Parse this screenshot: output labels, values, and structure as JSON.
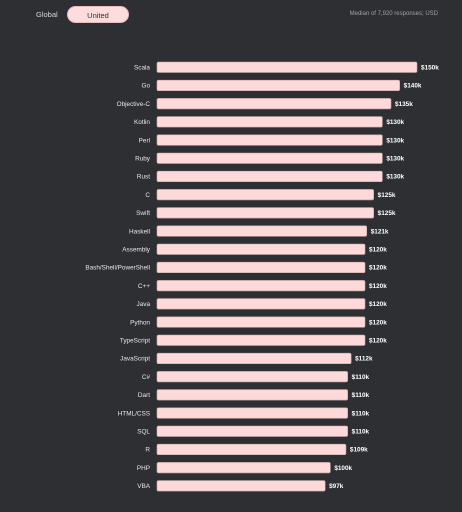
{
  "tabs": {
    "global": "Global",
    "united_states": "United States"
  },
  "subtitle": "Median of 7,920 responses; USD",
  "colors": {
    "background": "#2d2f33",
    "bar_fill": "#fdd9d9",
    "bar_stroke": "#c9a9a9",
    "active_tab": "#fcdcdc"
  },
  "chart_data": {
    "type": "bar",
    "orientation": "horizontal",
    "title": "",
    "xlabel": "",
    "ylabel": "",
    "xlim": [
      0,
      150000
    ],
    "grid": false,
    "categories": [
      "Scala",
      "Go",
      "Objective-C",
      "Kotlin",
      "Perl",
      "Ruby",
      "Rust",
      "C",
      "Swift",
      "Haskell",
      "Assembly",
      "Bash/Shell/PowerShell",
      "C++",
      "Java",
      "Python",
      "TypeScript",
      "JavaScript",
      "C#",
      "Dart",
      "HTML/CSS",
      "SQL",
      "R",
      "PHP",
      "VBA"
    ],
    "values": [
      150000,
      140000,
      135000,
      130000,
      130000,
      130000,
      130000,
      125000,
      125000,
      121000,
      120000,
      120000,
      120000,
      120000,
      120000,
      120000,
      112000,
      110000,
      110000,
      110000,
      110000,
      109000,
      100000,
      97000
    ],
    "value_labels": [
      "$150k",
      "$140k",
      "$135k",
      "$130k",
      "$130k",
      "$130k",
      "$130k",
      "$125k",
      "$125k",
      "$121k",
      "$120k",
      "$120k",
      "$120k",
      "$120k",
      "$120k",
      "$120k",
      "$112k",
      "$110k",
      "$110k",
      "$110k",
      "$110k",
      "$109k",
      "$100k",
      "$97k"
    ]
  }
}
